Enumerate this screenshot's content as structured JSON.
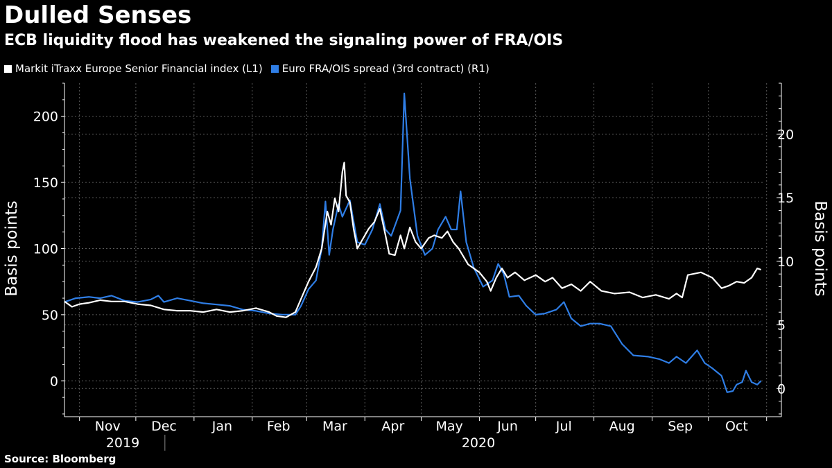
{
  "title": "Dulled Senses",
  "subtitle": "ECB liquidity flood has weakened the signaling power of FRA/OIS",
  "source": "Source: Bloomberg",
  "colors": {
    "background": "#000000",
    "series_white": "#ffffff",
    "series_blue": "#2f7ee6",
    "grid": "#5a5a5a"
  },
  "legend": [
    {
      "label": "Markit iTraxx Europe Senior Financial index  (L1)",
      "color": "#ffffff"
    },
    {
      "label": "Euro FRA/OIS spread (3rd contract) (R1)",
      "color": "#2f7ee6"
    }
  ],
  "chart_data": {
    "type": "line",
    "title": "Dulled Senses",
    "subtitle": "ECB liquidity flood has weakened the signaling power of FRA/OIS",
    "ylabel_left": "Basis points",
    "ylabel_right": "Basis points",
    "ylim_left": [
      -25,
      225
    ],
    "ylim_right": [
      -2,
      24
    ],
    "yticks_left": [
      0,
      50,
      100,
      150,
      200
    ],
    "yticks_right": [
      0,
      5,
      10,
      15,
      20
    ],
    "xlim": [
      "2019-10-24",
      "2020-10-31"
    ],
    "months": [
      "Nov",
      "Dec",
      "Jan",
      "Feb",
      "Mar",
      "Apr",
      "May",
      "Jun",
      "Jul",
      "Aug",
      "Sep",
      "Oct"
    ],
    "years": [
      "2019",
      "2020"
    ],
    "grid": true,
    "legend_position": "top-left",
    "series": [
      {
        "name": "Markit iTraxx Europe Senior Financial index  (L1)",
        "axis": "left",
        "color": "#ffffff",
        "points": [
          [
            "2019-10-24",
            60
          ],
          [
            "2019-10-28",
            56
          ],
          [
            "2019-11-01",
            58
          ],
          [
            "2019-11-06",
            59
          ],
          [
            "2019-11-12",
            61
          ],
          [
            "2019-11-18",
            60
          ],
          [
            "2019-11-25",
            60
          ],
          [
            "2019-12-02",
            58
          ],
          [
            "2019-12-09",
            57
          ],
          [
            "2019-12-16",
            54
          ],
          [
            "2019-12-23",
            53
          ],
          [
            "2019-12-30",
            53
          ],
          [
            "2020-01-06",
            52
          ],
          [
            "2020-01-13",
            54
          ],
          [
            "2020-01-20",
            52
          ],
          [
            "2020-01-27",
            53
          ],
          [
            "2020-02-03",
            55
          ],
          [
            "2020-02-10",
            52
          ],
          [
            "2020-02-14",
            49
          ],
          [
            "2020-02-19",
            48
          ],
          [
            "2020-02-24",
            52
          ],
          [
            "2020-02-27",
            62
          ],
          [
            "2020-03-02",
            75
          ],
          [
            "2020-03-06",
            86
          ],
          [
            "2020-03-09",
            100
          ],
          [
            "2020-03-12",
            128
          ],
          [
            "2020-03-14",
            118
          ],
          [
            "2020-03-16",
            138
          ],
          [
            "2020-03-18",
            128
          ],
          [
            "2020-03-20",
            158
          ],
          [
            "2020-03-21",
            165
          ],
          [
            "2020-03-22",
            140
          ],
          [
            "2020-03-24",
            135
          ],
          [
            "2020-03-26",
            115
          ],
          [
            "2020-03-28",
            100
          ],
          [
            "2020-03-30",
            105
          ],
          [
            "2020-04-03",
            115
          ],
          [
            "2020-04-06",
            120
          ],
          [
            "2020-04-09",
            130
          ],
          [
            "2020-04-12",
            110
          ],
          [
            "2020-04-14",
            96
          ],
          [
            "2020-04-17",
            95
          ],
          [
            "2020-04-20",
            110
          ],
          [
            "2020-04-22",
            100
          ],
          [
            "2020-04-25",
            116
          ],
          [
            "2020-04-28",
            105
          ],
          [
            "2020-05-01",
            100
          ],
          [
            "2020-05-05",
            108
          ],
          [
            "2020-05-08",
            110
          ],
          [
            "2020-05-12",
            108
          ],
          [
            "2020-05-15",
            113
          ],
          [
            "2020-05-18",
            105
          ],
          [
            "2020-05-21",
            100
          ],
          [
            "2020-05-26",
            88
          ],
          [
            "2020-06-01",
            82
          ],
          [
            "2020-06-05",
            75
          ],
          [
            "2020-06-07",
            68
          ],
          [
            "2020-06-10",
            78
          ],
          [
            "2020-06-13",
            85
          ],
          [
            "2020-06-16",
            78
          ],
          [
            "2020-06-20",
            82
          ],
          [
            "2020-06-25",
            76
          ],
          [
            "2020-07-01",
            80
          ],
          [
            "2020-07-06",
            75
          ],
          [
            "2020-07-10",
            78
          ],
          [
            "2020-07-15",
            70
          ],
          [
            "2020-07-20",
            73
          ],
          [
            "2020-07-25",
            68
          ],
          [
            "2020-07-30",
            75
          ],
          [
            "2020-08-05",
            68
          ],
          [
            "2020-08-12",
            66
          ],
          [
            "2020-08-20",
            67
          ],
          [
            "2020-08-27",
            63
          ],
          [
            "2020-09-03",
            65
          ],
          [
            "2020-09-10",
            62
          ],
          [
            "2020-09-14",
            66
          ],
          [
            "2020-09-17",
            63
          ],
          [
            "2020-09-20",
            80
          ],
          [
            "2020-09-27",
            82
          ],
          [
            "2020-10-03",
            78
          ],
          [
            "2020-10-08",
            70
          ],
          [
            "2020-10-12",
            72
          ],
          [
            "2020-10-16",
            75
          ],
          [
            "2020-10-20",
            74
          ],
          [
            "2020-10-24",
            78
          ],
          [
            "2020-10-27",
            85
          ],
          [
            "2020-10-29",
            84
          ]
        ]
      },
      {
        "name": "Euro FRA/OIS spread (3rd contract) (R1)",
        "axis": "right",
        "color": "#2f7ee6",
        "points": [
          [
            "2019-10-24",
            6.8
          ],
          [
            "2019-10-30",
            7.1
          ],
          [
            "2019-11-06",
            7.2
          ],
          [
            "2019-11-12",
            7.1
          ],
          [
            "2019-11-18",
            7.3
          ],
          [
            "2019-11-25",
            6.9
          ],
          [
            "2019-12-02",
            6.8
          ],
          [
            "2019-12-09",
            7.0
          ],
          [
            "2019-12-13",
            7.3
          ],
          [
            "2019-12-16",
            6.8
          ],
          [
            "2019-12-23",
            7.1
          ],
          [
            "2019-12-30",
            6.9
          ],
          [
            "2020-01-06",
            6.7
          ],
          [
            "2020-01-13",
            6.6
          ],
          [
            "2020-01-20",
            6.5
          ],
          [
            "2020-01-27",
            6.2
          ],
          [
            "2020-02-03",
            6.1
          ],
          [
            "2020-02-10",
            5.9
          ],
          [
            "2020-02-17",
            5.8
          ],
          [
            "2020-02-24",
            5.8
          ],
          [
            "2020-02-27",
            6.5
          ],
          [
            "2020-03-02",
            7.8
          ],
          [
            "2020-03-06",
            8.5
          ],
          [
            "2020-03-09",
            11.0
          ],
          [
            "2020-03-11",
            14.7
          ],
          [
            "2020-03-13",
            10.5
          ],
          [
            "2020-03-15",
            12.5
          ],
          [
            "2020-03-18",
            14.5
          ],
          [
            "2020-03-20",
            13.5
          ],
          [
            "2020-03-24",
            14.8
          ],
          [
            "2020-03-28",
            11.5
          ],
          [
            "2020-04-01",
            11.3
          ],
          [
            "2020-04-05",
            12.5
          ],
          [
            "2020-04-09",
            14.5
          ],
          [
            "2020-04-12",
            12.5
          ],
          [
            "2020-04-15",
            12.0
          ],
          [
            "2020-04-20",
            14.0
          ],
          [
            "2020-04-22",
            23.2
          ],
          [
            "2020-04-25",
            16.5
          ],
          [
            "2020-04-29",
            12.0
          ],
          [
            "2020-05-03",
            10.5
          ],
          [
            "2020-05-07",
            11.0
          ],
          [
            "2020-05-10",
            12.5
          ],
          [
            "2020-05-14",
            13.5
          ],
          [
            "2020-05-17",
            12.5
          ],
          [
            "2020-05-20",
            12.5
          ],
          [
            "2020-05-22",
            15.5
          ],
          [
            "2020-05-25",
            11.5
          ],
          [
            "2020-05-29",
            9.5
          ],
          [
            "2020-06-03",
            8.0
          ],
          [
            "2020-06-08",
            8.5
          ],
          [
            "2020-06-11",
            9.8
          ],
          [
            "2020-06-14",
            9.0
          ],
          [
            "2020-06-17",
            7.2
          ],
          [
            "2020-06-22",
            7.3
          ],
          [
            "2020-06-26",
            6.5
          ],
          [
            "2020-07-01",
            5.8
          ],
          [
            "2020-07-06",
            5.9
          ],
          [
            "2020-07-12",
            6.2
          ],
          [
            "2020-07-16",
            6.8
          ],
          [
            "2020-07-20",
            5.5
          ],
          [
            "2020-07-25",
            4.9
          ],
          [
            "2020-07-30",
            5.1
          ],
          [
            "2020-08-04",
            5.1
          ],
          [
            "2020-08-10",
            4.9
          ],
          [
            "2020-08-16",
            3.5
          ],
          [
            "2020-08-22",
            2.6
          ],
          [
            "2020-08-30",
            2.5
          ],
          [
            "2020-09-05",
            2.3
          ],
          [
            "2020-09-10",
            2.0
          ],
          [
            "2020-09-14",
            2.5
          ],
          [
            "2020-09-19",
            2.0
          ],
          [
            "2020-09-25",
            3.0
          ],
          [
            "2020-09-29",
            2.0
          ],
          [
            "2020-10-03",
            1.6
          ],
          [
            "2020-10-08",
            1.0
          ],
          [
            "2020-10-11",
            -0.3
          ],
          [
            "2020-10-14",
            -0.2
          ],
          [
            "2020-10-16",
            0.3
          ],
          [
            "2020-10-19",
            0.5
          ],
          [
            "2020-10-21",
            1.4
          ],
          [
            "2020-10-24",
            0.5
          ],
          [
            "2020-10-27",
            0.3
          ],
          [
            "2020-10-29",
            0.6
          ]
        ]
      }
    ]
  }
}
